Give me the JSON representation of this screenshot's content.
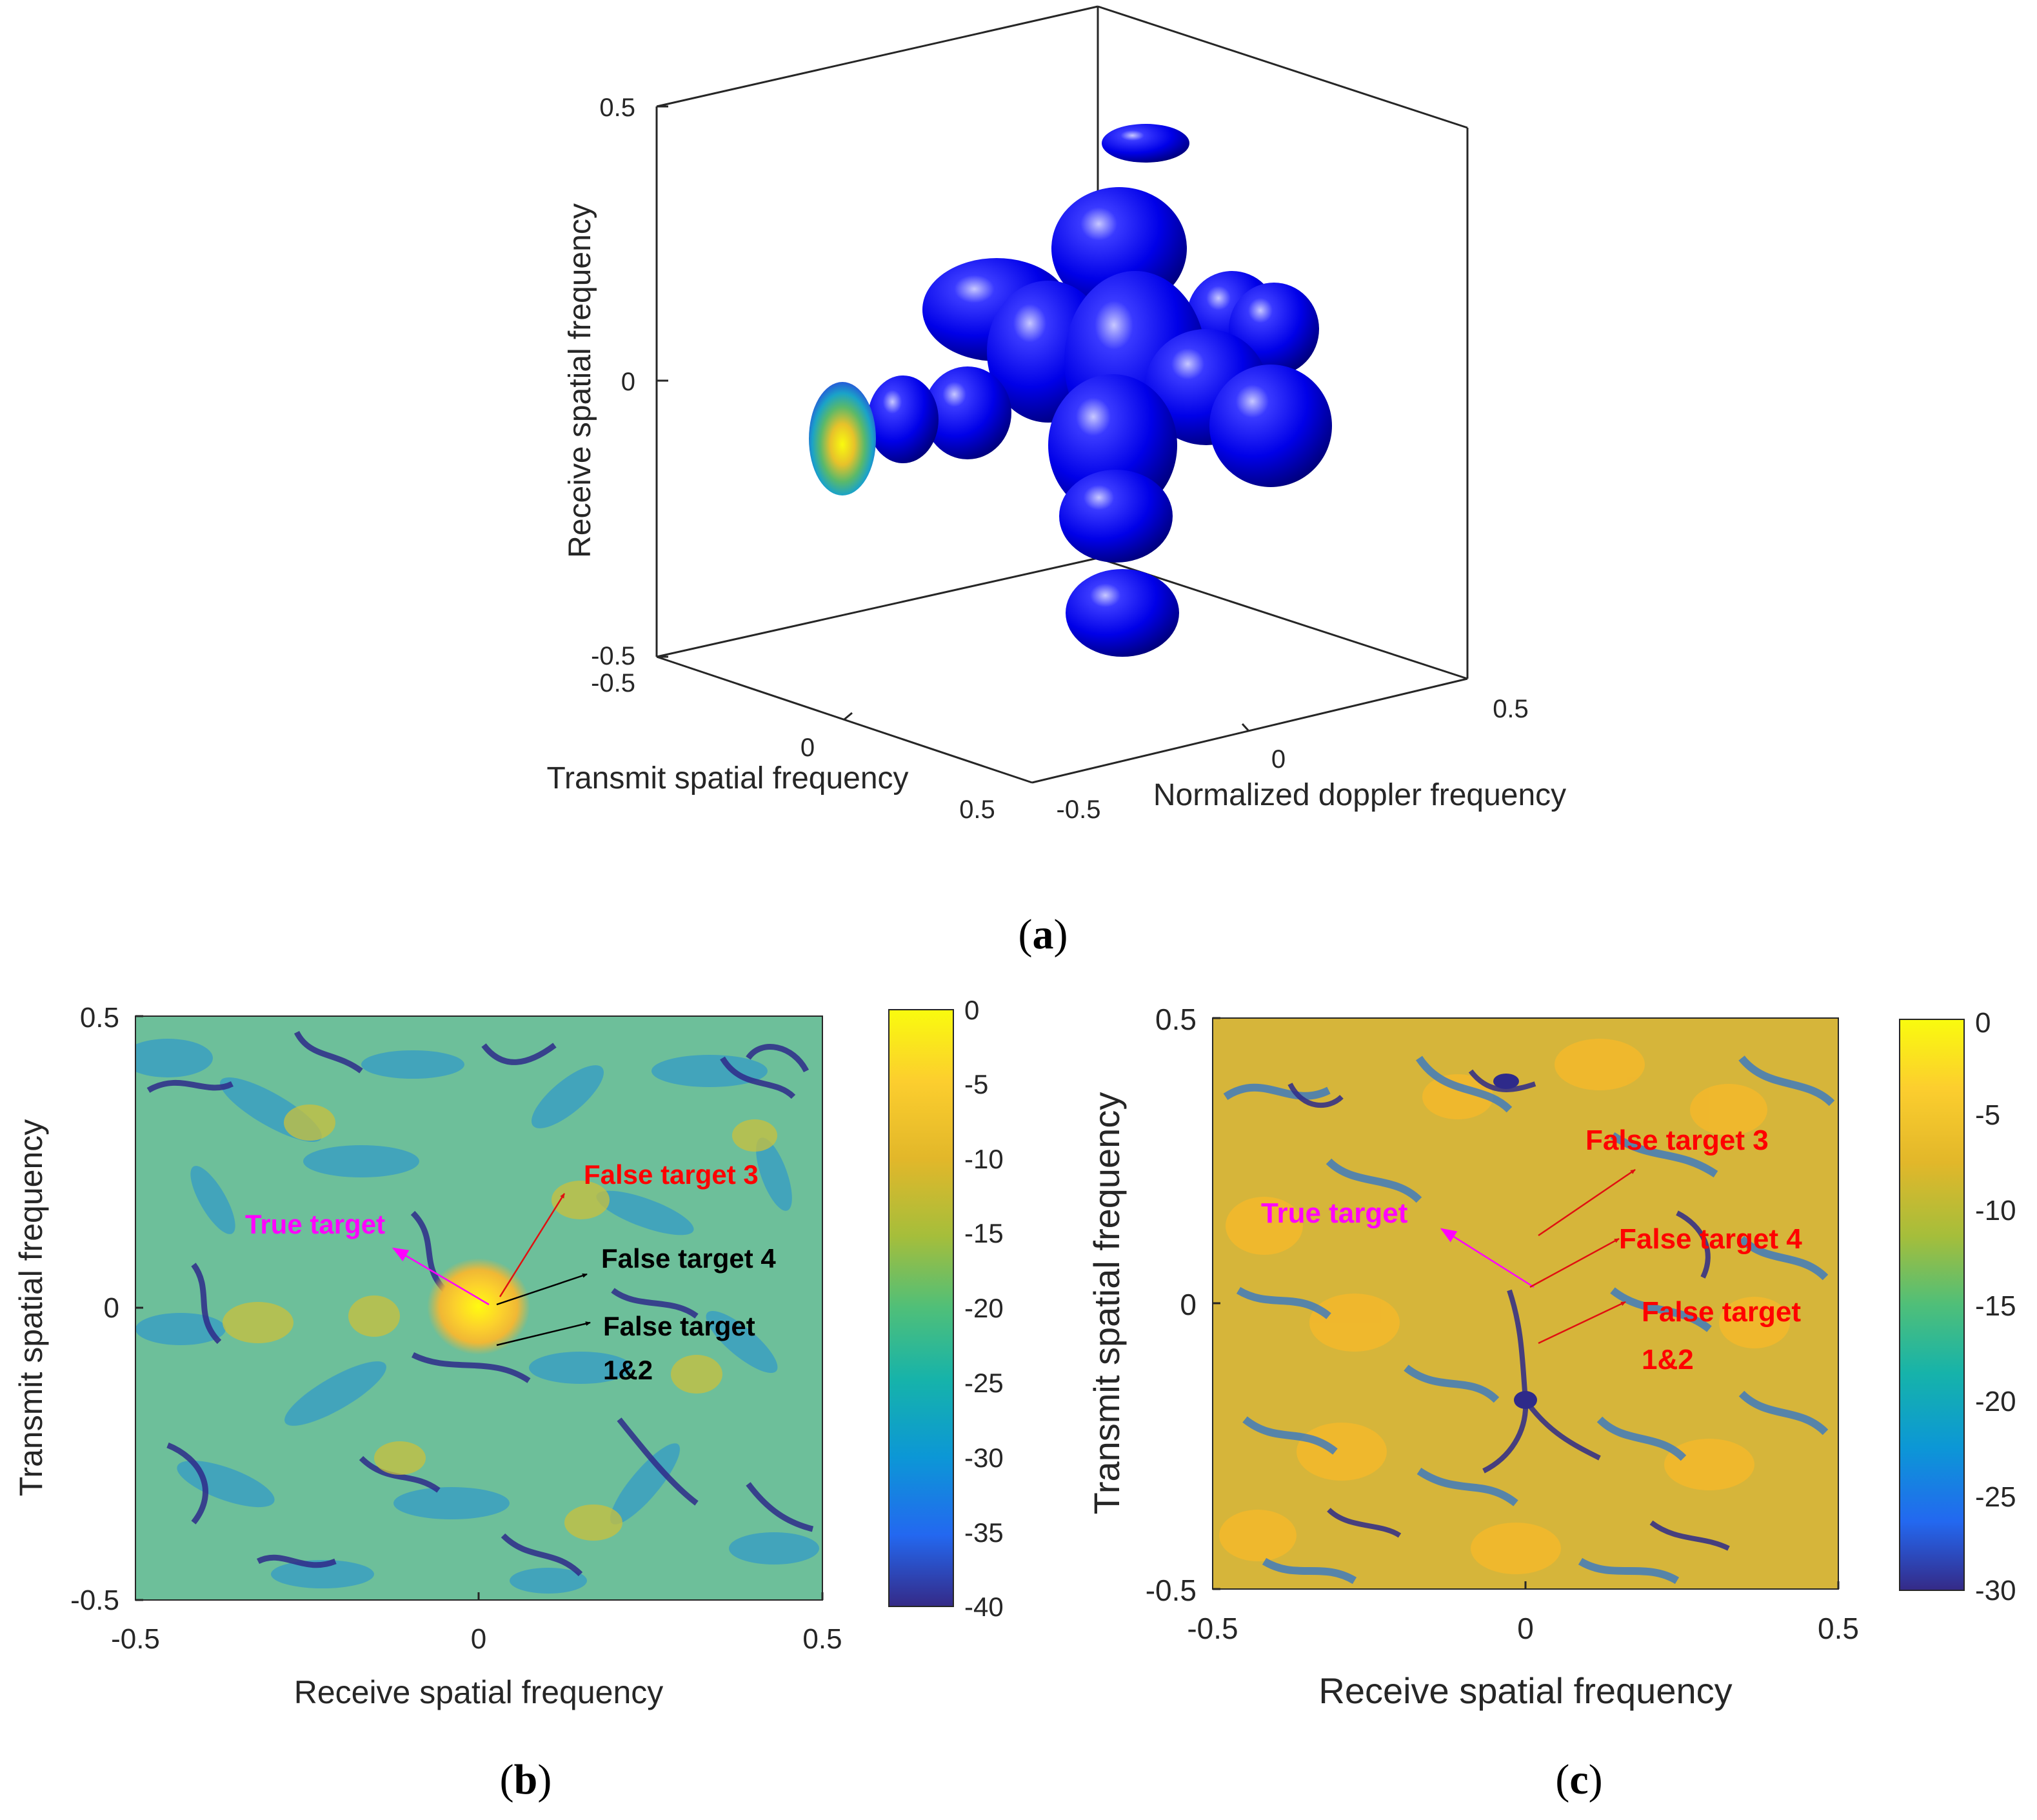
{
  "chart_data": [
    {
      "panel": "(a)",
      "type": "isosurface-3d",
      "xlabel": "Transmit spatial frequency",
      "ylabel": "Normalized doppler frequency",
      "zlabel": "Receive spatial frequency",
      "x_ticks": [
        "-0.5",
        "0",
        "0.5"
      ],
      "y_ticks": [
        "-0.5",
        "0",
        "0.5"
      ],
      "z_ticks": [
        "-0.5",
        "0",
        "0.5"
      ],
      "xlim": [
        -0.5,
        0.5
      ],
      "ylim": [
        -0.5,
        0.5
      ],
      "zlim": [
        -0.5,
        0.5
      ],
      "surface_color": "#0000ff",
      "slice_colormap": "parula"
    },
    {
      "panel": "(b)",
      "type": "heatmap",
      "xlabel": "Receive spatial frequency",
      "ylabel": "Transmit spatial frequency",
      "x_ticks": [
        "-0.5",
        "0",
        "0.5"
      ],
      "y_ticks": [
        "-0.5",
        "0",
        "0.5"
      ],
      "xlim": [
        -0.5,
        0.5
      ],
      "ylim": [
        -0.5,
        0.5
      ],
      "colorbar_ticks": [
        "0",
        "-5",
        "-10",
        "-15",
        "-20",
        "-25",
        "-30",
        "-35",
        "-40"
      ],
      "clim": [
        -40,
        0
      ],
      "colormap": "parula",
      "annotations": [
        {
          "text": "True target",
          "color": "#ff00ff",
          "x": -0.13,
          "y": 0.11
        },
        {
          "text": "False target 3",
          "color": "#ff0000",
          "x": 0.15,
          "y": 0.2
        },
        {
          "text": "False target 4",
          "color": "#000000",
          "x": 0.18,
          "y": 0.07
        },
        {
          "text": "False target",
          "text2": "1&2",
          "color": "#000000",
          "x": 0.19,
          "y": -0.03
        }
      ]
    },
    {
      "panel": "(c)",
      "type": "heatmap",
      "xlabel": "Receive spatial frequency",
      "ylabel": "Transmit spatial frequency",
      "x_ticks": [
        "-0.5",
        "0",
        "0.5"
      ],
      "y_ticks": [
        "-0.5",
        "0",
        "0.5"
      ],
      "xlim": [
        -0.5,
        0.5
      ],
      "ylim": [
        -0.5,
        0.5
      ],
      "colorbar_ticks": [
        "0",
        "-5",
        "-10",
        "-15",
        "-20",
        "-25",
        "-30"
      ],
      "clim": [
        -30,
        0
      ],
      "colormap": "parula",
      "annotations": [
        {
          "text": "True target",
          "color": "#ff00ff",
          "x": -0.14,
          "y": 0.12
        },
        {
          "text": "False target 3",
          "color": "#ff0000",
          "x": 0.18,
          "y": 0.22
        },
        {
          "text": "False target 4",
          "color": "#ff0000",
          "x": 0.15,
          "y": 0.08
        },
        {
          "text": "False target",
          "text2": "1&2",
          "color": "#ff0000",
          "x": 0.17,
          "y": -0.01
        }
      ]
    }
  ],
  "panel_labels": {
    "a": {
      "open": "(",
      "letter": "a",
      "close": ")"
    },
    "b": {
      "open": "(",
      "letter": "b",
      "close": ")"
    },
    "c": {
      "open": "(",
      "letter": "c",
      "close": ")"
    }
  }
}
